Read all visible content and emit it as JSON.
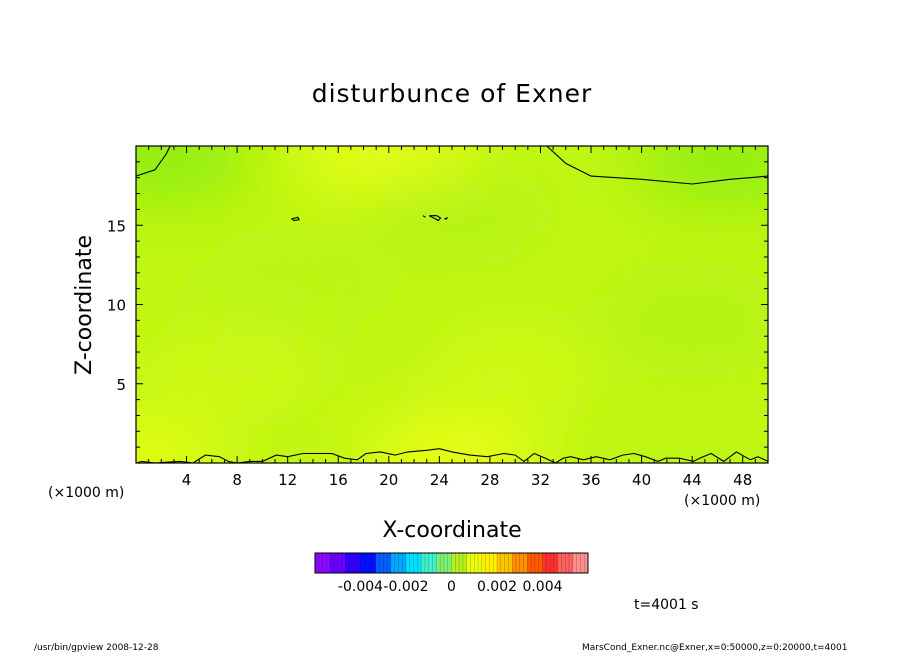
{
  "chart_data": {
    "type": "heatmap",
    "title": "disturbunce of Exner",
    "xlabel": "X-coordinate",
    "ylabel": "Z-coordinate",
    "x_unit": "(×1000 m)",
    "y_unit": "(×1000 m)",
    "xlim": [
      0,
      50
    ],
    "ylim": [
      0,
      20
    ],
    "x_ticks": [
      4,
      8,
      12,
      16,
      20,
      24,
      28,
      32,
      36,
      40,
      44,
      48
    ],
    "y_ticks": [
      5,
      10,
      15
    ],
    "colorbar": {
      "range": [
        -0.006,
        0.006
      ],
      "tick_values": [
        -0.004,
        -0.002,
        0,
        0.002,
        0.004
      ],
      "tick_labels": [
        "-0.004",
        "-0.002",
        "0",
        "0.002",
        "0.004"
      ],
      "colors": [
        "#8a0aff",
        "#6a00ff",
        "#3000ff",
        "#0010ff",
        "#0060ff",
        "#00a8ff",
        "#00e0ff",
        "#3ff0c8",
        "#7cf070",
        "#b2f020",
        "#eaff10",
        "#fff000",
        "#ffc400",
        "#ff9000",
        "#ff5a00",
        "#ff3030",
        "#ff6060",
        "#ff8e8e"
      ]
    },
    "field_color_low": "#88ec10",
    "field_color_high": "#f0ff18",
    "regions": [
      {
        "x": 0,
        "z": 0.3,
        "value": 0.0009
      },
      {
        "x": 25,
        "z": 0.3,
        "value": 0.001
      },
      {
        "x": 20,
        "z": 19.5,
        "value": 0.001
      },
      {
        "x": 2,
        "z": 19.3,
        "value": -0.0003
      },
      {
        "x": 47,
        "z": 19,
        "value": -0.0003
      },
      {
        "x": 25,
        "z": 16,
        "value": 0.0002
      },
      {
        "x": 12,
        "z": 11,
        "value": 0.0003
      },
      {
        "x": 44,
        "z": 9,
        "value": 0.0002
      },
      {
        "x": 30,
        "z": 6,
        "value": 0.0006
      },
      {
        "x": 8,
        "z": 6,
        "value": 0.0006
      }
    ],
    "zero_contours": [
      [
        [
          0,
          18.1
        ],
        [
          1.5,
          18.5
        ],
        [
          2.4,
          19.5
        ],
        [
          2.7,
          20
        ]
      ],
      [
        [
          32.5,
          20
        ],
        [
          34,
          18.9
        ],
        [
          36,
          18.1
        ],
        [
          40,
          17.9
        ],
        [
          44,
          17.6
        ],
        [
          47,
          17.9
        ],
        [
          50,
          18.1
        ]
      ],
      [
        [
          0,
          0
        ],
        [
          0.5,
          0.1
        ],
        [
          1.5,
          0
        ],
        [
          2.4,
          0.05
        ],
        [
          3.5,
          0.1
        ],
        [
          4.5,
          0
        ],
        [
          5.5,
          0.5
        ],
        [
          6.6,
          0.4
        ],
        [
          7.3,
          0.1
        ],
        [
          8,
          0
        ],
        [
          9,
          0.1
        ],
        [
          10,
          0.1
        ],
        [
          11.1,
          0.5
        ],
        [
          12,
          0.4
        ],
        [
          13.2,
          0.6
        ],
        [
          14.5,
          0.6
        ],
        [
          15.5,
          0.6
        ],
        [
          16.5,
          0.3
        ],
        [
          17.5,
          0.2
        ],
        [
          18.2,
          0.6
        ],
        [
          19.3,
          0.7
        ],
        [
          20.5,
          0.5
        ],
        [
          21.5,
          0.7
        ],
        [
          23,
          0.8
        ],
        [
          24,
          0.9
        ],
        [
          25,
          0.7
        ],
        [
          26.4,
          0.5
        ],
        [
          27.8,
          0.4
        ],
        [
          29.1,
          0.6
        ],
        [
          30,
          0.5
        ],
        [
          30.7,
          0.1
        ],
        [
          31.5,
          0.6
        ],
        [
          32.4,
          0.3
        ],
        [
          33.2,
          0
        ],
        [
          33.8,
          0.3
        ],
        [
          34.4,
          0.4
        ],
        [
          35.4,
          0.2
        ],
        [
          36.4,
          0.4
        ],
        [
          37.5,
          0.2
        ],
        [
          38.5,
          0.5
        ],
        [
          39.4,
          0.6
        ],
        [
          40.3,
          0.4
        ],
        [
          41.3,
          0.1
        ],
        [
          41.9,
          0.3
        ],
        [
          43,
          0.3
        ],
        [
          44.1,
          0.1
        ],
        [
          44.6,
          0.3
        ],
        [
          45.5,
          0.6
        ],
        [
          46.5,
          0.1
        ],
        [
          47.5,
          0.7
        ],
        [
          48.6,
          0.2
        ],
        [
          49.2,
          0.4
        ],
        [
          50,
          0.1
        ]
      ],
      [
        [
          12.3,
          15.4
        ],
        [
          12.8,
          15.5
        ],
        [
          12.9,
          15.35
        ],
        [
          12.5,
          15.3
        ],
        [
          12.3,
          15.4
        ]
      ],
      [
        [
          23.2,
          15.6
        ],
        [
          23.7,
          15.4
        ],
        [
          23.9,
          15.3
        ],
        [
          24.1,
          15.45
        ],
        [
          23.8,
          15.6
        ],
        [
          23.2,
          15.6
        ]
      ],
      [
        [
          22.7,
          15.6
        ],
        [
          22.9,
          15.5
        ]
      ],
      [
        [
          24.4,
          15.4
        ],
        [
          24.6,
          15.45
        ],
        [
          24.5,
          15.35
        ]
      ]
    ],
    "time_label": "t=4001  s",
    "footer_left": "/usr/bin/gpview   2008-12-28",
    "footer_right": "MarsCond_Exner.nc@Exner,x=0:50000,z=0:20000,t=4001"
  }
}
